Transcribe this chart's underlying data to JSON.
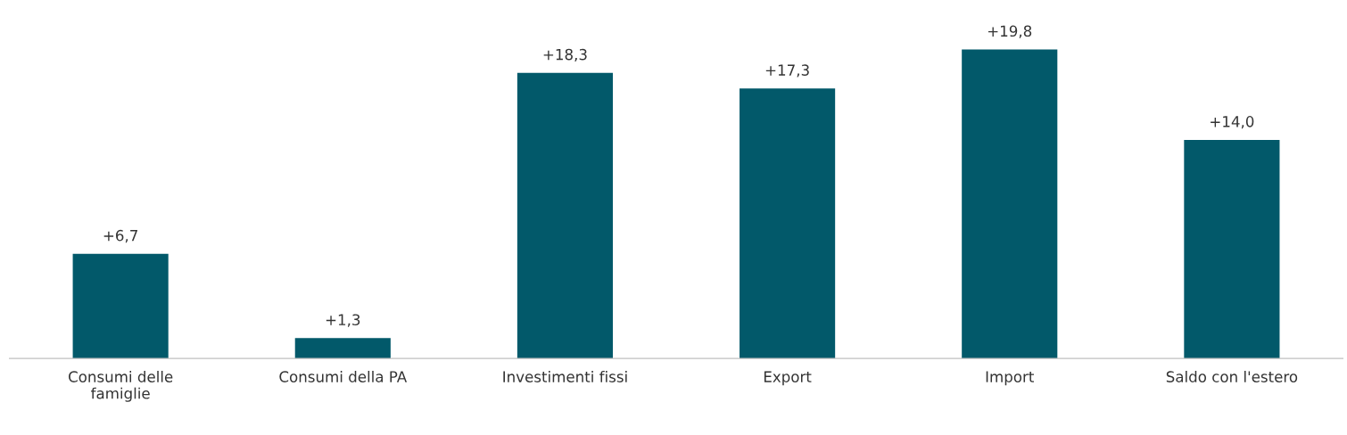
{
  "chart_data": {
    "type": "bar",
    "categories": [
      "Consumi delle\nfamiglie",
      "Consumi della PA",
      "Investimenti fissi",
      "Export",
      "Import",
      "Saldo con l'estero"
    ],
    "values": [
      6.7,
      1.3,
      18.3,
      17.3,
      19.8,
      14.0
    ],
    "value_labels": [
      "+6,7",
      "+1,3",
      "+18,3",
      "+17,3",
      "+19,8",
      "+14,0"
    ],
    "color": "#02596a",
    "grid": false,
    "legend": false
  }
}
